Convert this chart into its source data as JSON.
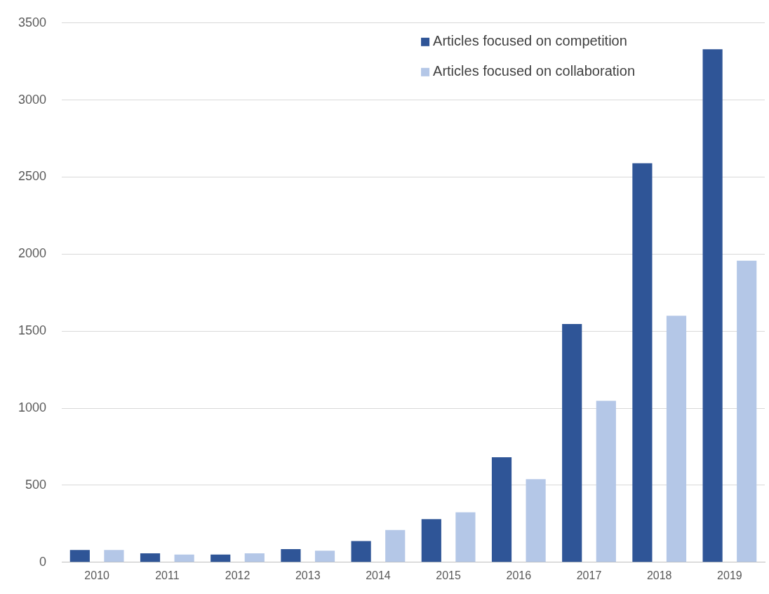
{
  "chart_data": {
    "type": "bar",
    "categories": [
      "2010",
      "2011",
      "2012",
      "2013",
      "2014",
      "2015",
      "2016",
      "2017",
      "2018",
      "2019"
    ],
    "series": [
      {
        "name": "Articles focused on competition",
        "color": "#2f5597",
        "values": [
          80,
          58,
          50,
          85,
          138,
          280,
          682,
          1547,
          2590,
          3330
        ]
      },
      {
        "name": "Articles focused on collaboration",
        "color": "#b4c7e7",
        "values": [
          80,
          50,
          58,
          75,
          210,
          325,
          540,
          1048,
          1600,
          1957
        ]
      }
    ],
    "ylim": [
      0,
      3500
    ],
    "yticks": [
      0,
      500,
      1000,
      1500,
      2000,
      2500,
      3000,
      3500
    ],
    "grid": "y",
    "legend": "top right"
  }
}
